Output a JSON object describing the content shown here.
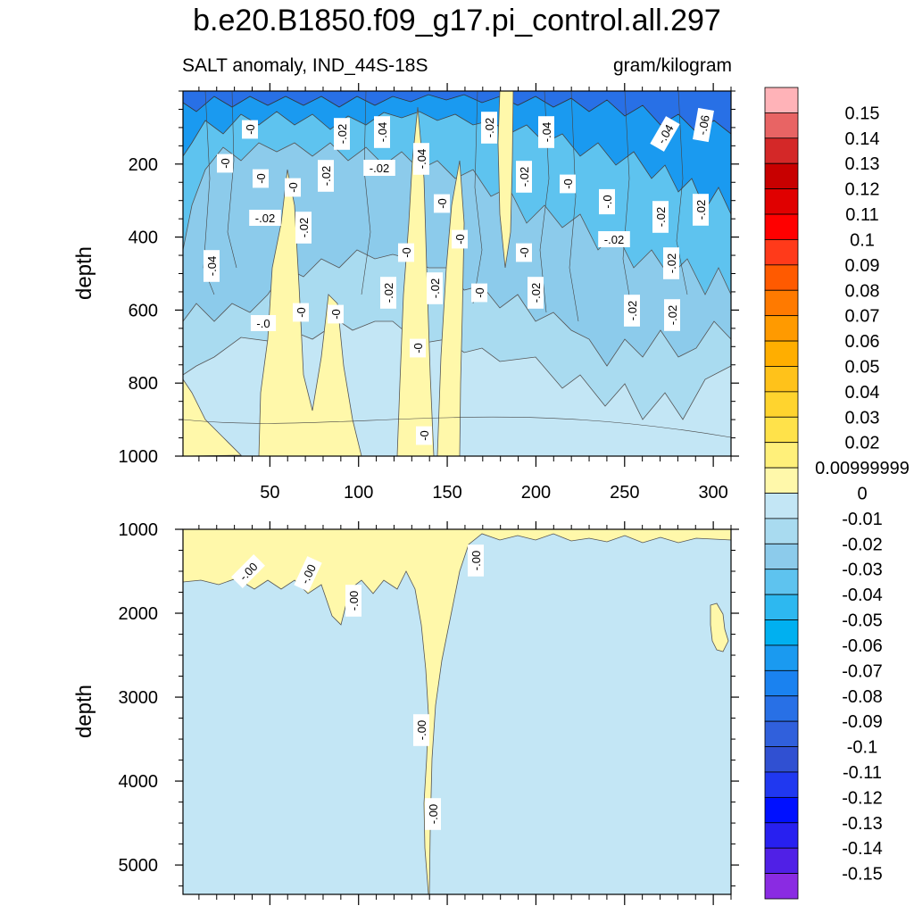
{
  "title": "b.e20.B1850.f09_g17.pi_control.all.297",
  "subtitle_left": "SALT anomaly, IND_44S-18S",
  "subtitle_right": "gram/kilogram",
  "chart_data": {
    "type": "contour",
    "x_ticks": [
      50,
      100,
      150,
      200,
      250,
      300
    ],
    "x_range": [
      1,
      310
    ],
    "top_panel": {
      "ylabel": "depth",
      "ylim": [
        1000,
        0
      ],
      "y_ticks": [
        200,
        400,
        600,
        800,
        1000
      ],
      "contour_labels": [
        "-0",
        "-0",
        "-.02",
        "-.04",
        "-.02",
        "-.04",
        "-.04",
        "-.06",
        "-0",
        "-0",
        "-.02",
        "-.02",
        "-.04",
        "-.02",
        "-0",
        "-0",
        "-.02",
        "-.02",
        "-.0",
        "-.02",
        "-.02",
        "-.02",
        "-.04",
        "-0",
        "-0",
        "-0",
        "-.02",
        "-.02",
        "-.02",
        "-0",
        "-.0",
        "-0",
        "-0",
        "-.02",
        "-.02",
        "-0",
        "-.02",
        "-0"
      ]
    },
    "bottom_panel": {
      "ylabel": "depth",
      "ylim": [
        5350,
        1000
      ],
      "y_ticks": [
        1000,
        2000,
        3000,
        4000,
        5000
      ],
      "contour_labels": [
        "-.00",
        "-.00",
        "-.00",
        "-.00",
        "-.00",
        "-.00"
      ]
    },
    "colorbar": {
      "levels": [
        "0.15",
        "0.14",
        "0.13",
        "0.12",
        "0.11",
        "0.1",
        "0.09",
        "0.08",
        "0.07",
        "0.06",
        "0.05",
        "0.04",
        "0.03",
        "0.02",
        "0.00999999",
        "0",
        "-0.01",
        "-0.02",
        "-0.03",
        "-0.04",
        "-0.05",
        "-0.06",
        "-0.07",
        "-0.08",
        "-0.09",
        "-0.1",
        "-0.11",
        "-0.12",
        "-0.13",
        "-0.14",
        "-0.15"
      ],
      "colors": [
        "#ffb3b8",
        "#e86464",
        "#d42828",
        "#c80000",
        "#e00000",
        "#ff0000",
        "#ff3a1a",
        "#ff5a00",
        "#ff7a00",
        "#ff9a00",
        "#ffae00",
        "#ffc21a",
        "#ffd42e",
        "#ffe24a",
        "#fff07a",
        "#fff8aa",
        "#c3e6f5",
        "#a9dbf0",
        "#8ccbeb",
        "#5ec3ef",
        "#2db8f0",
        "#00b0f0",
        "#1a9af0",
        "#1a82f0",
        "#2870e6",
        "#3060dc",
        "#3050d2",
        "#2038f0",
        "#0010ff",
        "#2820f0",
        "#5020e6",
        "#8a2be2"
      ]
    }
  }
}
